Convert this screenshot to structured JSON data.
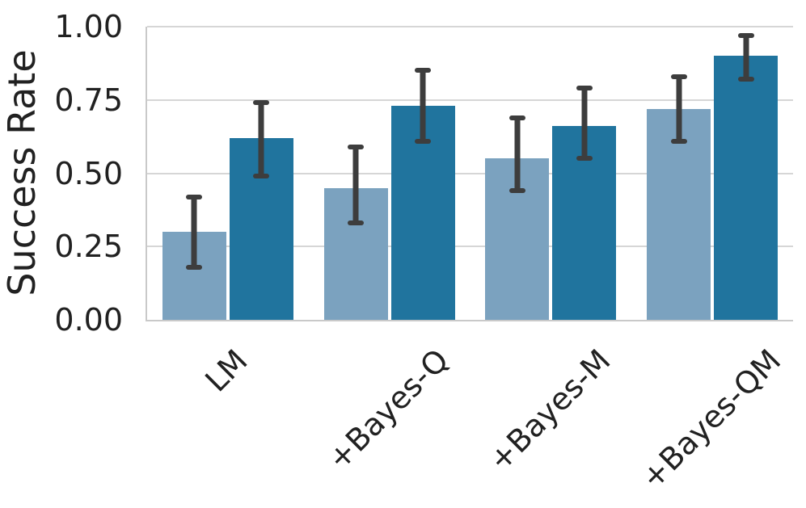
{
  "chart_data": {
    "type": "bar",
    "title": "",
    "xlabel": "",
    "ylabel": "Success Rate",
    "categories": [
      "LM",
      "+Bayes-Q",
      "+Bayes-M",
      "+Bayes-QM"
    ],
    "series": [
      {
        "name": "light-blue",
        "color": "#7BA2BF",
        "values": [
          0.3,
          0.45,
          0.55,
          0.72
        ],
        "err_low": [
          0.18,
          0.33,
          0.44,
          0.61
        ],
        "err_high": [
          0.42,
          0.59,
          0.69,
          0.83
        ]
      },
      {
        "name": "dark-blue",
        "color": "#20749E",
        "values": [
          0.62,
          0.73,
          0.66,
          0.9
        ],
        "err_low": [
          0.49,
          0.61,
          0.55,
          0.82
        ],
        "err_high": [
          0.74,
          0.85,
          0.79,
          0.97
        ]
      }
    ],
    "ylim": [
      0,
      1.0
    ],
    "yticks": [
      0,
      0.25,
      0.5,
      0.75,
      1.0
    ],
    "ytick_labels": [
      "0.00",
      "0.25",
      "0.50",
      "0.75",
      "1.00"
    ],
    "grid": true,
    "legend": "none",
    "error_bars": true,
    "colors": {
      "error_bar": "#3D3D3D",
      "gridline": "#D6D6D6",
      "spine": "#C9C9C9",
      "text": "#212121"
    }
  }
}
